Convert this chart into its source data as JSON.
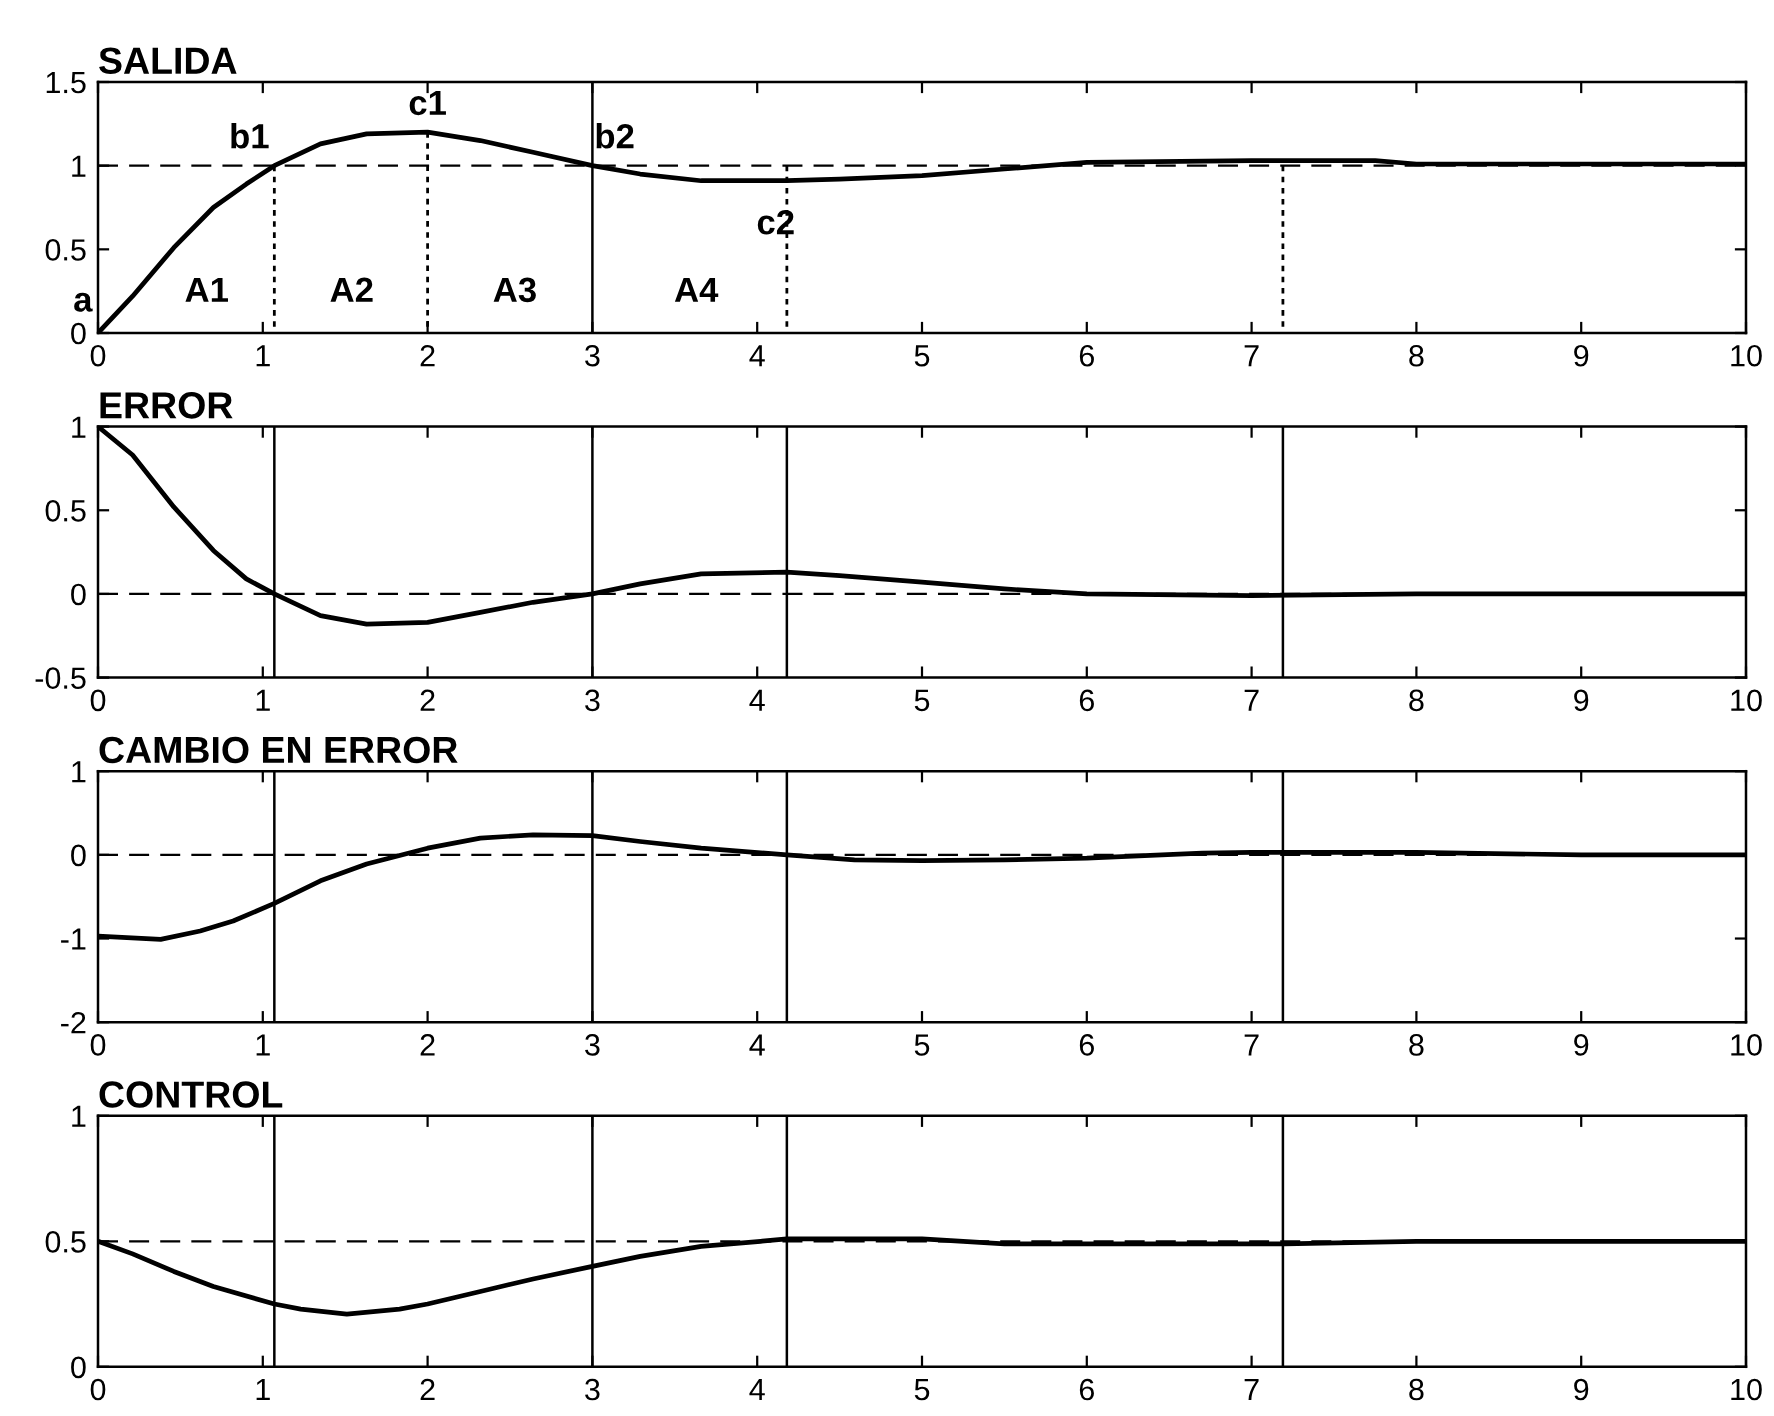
{
  "chart_data": [
    {
      "type": "line",
      "title": "SALIDA",
      "xlim": [
        0,
        10
      ],
      "xticks": [
        0,
        1,
        2,
        3,
        4,
        5,
        6,
        7,
        8,
        9,
        10
      ],
      "ylim": [
        0,
        1.5
      ],
      "yticks": [
        0,
        0.5,
        1,
        1.5
      ],
      "series": [
        {
          "color": "#000000",
          "x": [
            0,
            0.21,
            0.46,
            0.7,
            0.9,
            1.07,
            1.35,
            1.63,
            2.0,
            2.32,
            2.64,
            3.0,
            3.29,
            3.66,
            4.18,
            4.5,
            5.0,
            5.5,
            6.0,
            7.0,
            7.75,
            8.0,
            9.0,
            10.0
          ],
          "values": [
            0,
            0.22,
            0.51,
            0.75,
            0.89,
            1.0,
            1.13,
            1.19,
            1.2,
            1.15,
            1.08,
            1.0,
            0.95,
            0.91,
            0.91,
            0.92,
            0.94,
            0.98,
            1.02,
            1.03,
            1.03,
            1.01,
            1.01,
            1.01
          ]
        },
        {
          "color": "#000000",
          "line_style": "dotted",
          "x": [
            1.07,
            1.07
          ],
          "values": [
            1.0,
            0
          ]
        },
        {
          "color": "#000000",
          "line_style": "dotted",
          "x": [
            2.0,
            2.0
          ],
          "values": [
            1.2,
            0
          ]
        },
        {
          "color": "#000000",
          "line_style": "dotted",
          "x": [
            4.18,
            4.18
          ],
          "values": [
            1.0,
            0
          ]
        },
        {
          "color": "#000000",
          "line_style": "dotted",
          "x": [
            7.19,
            7.19
          ],
          "values": [
            1.0,
            0
          ]
        }
      ],
      "ref_lines": [
        {
          "axis": "y",
          "value": 1,
          "line_style": "dashed",
          "color": "#000000"
        },
        {
          "axis": "x",
          "value": 3,
          "line_style": "solid",
          "color": "#000000"
        }
      ],
      "annotations": [
        {
          "text": "a",
          "x": 0,
          "y": 0
        },
        {
          "text": "b1",
          "x": 1.07,
          "y": 1.0
        },
        {
          "text": "c1",
          "x": 2.0,
          "y": 1.2
        },
        {
          "text": "b2",
          "x": 3.0,
          "y": 1.0
        },
        {
          "text": "c2",
          "x": 4.18,
          "y": 0.91
        },
        "A1",
        "A2",
        "A3",
        "A4"
      ]
    },
    {
      "type": "line",
      "title": "ERROR",
      "xlim": [
        0,
        10
      ],
      "xticks": [
        0,
        1,
        2,
        3,
        4,
        5,
        6,
        7,
        8,
        9,
        10
      ],
      "ylim": [
        -0.5,
        1
      ],
      "yticks": [
        -0.5,
        0,
        0.5,
        1
      ],
      "series": [
        {
          "color": "#000000",
          "x": [
            0,
            0.21,
            0.46,
            0.7,
            0.9,
            1.07,
            1.35,
            1.63,
            2.0,
            2.32,
            2.64,
            3.0,
            3.29,
            3.66,
            4.18,
            4.5,
            5.0,
            5.5,
            6.0,
            7.0,
            8.0,
            9.0,
            10.0
          ],
          "values": [
            1.0,
            0.83,
            0.52,
            0.26,
            0.09,
            0,
            -0.13,
            -0.18,
            -0.17,
            -0.11,
            -0.05,
            0,
            0.06,
            0.12,
            0.13,
            0.11,
            0.07,
            0.03,
            0,
            -0.01,
            0,
            0,
            0
          ]
        }
      ],
      "ref_lines": [
        {
          "axis": "y",
          "value": 0,
          "line_style": "dashed",
          "color": "#000000"
        },
        {
          "axis": "x",
          "value": 1.07,
          "line_style": "solid",
          "color": "#000000"
        },
        {
          "axis": "x",
          "value": 3,
          "line_style": "solid",
          "color": "#000000"
        },
        {
          "axis": "x",
          "value": 4.18,
          "line_style": "solid",
          "color": "#000000"
        },
        {
          "axis": "x",
          "value": 7.19,
          "line_style": "solid",
          "color": "#000000"
        }
      ]
    },
    {
      "type": "line",
      "title": "CAMBIO EN ERROR",
      "xlim": [
        0,
        10
      ],
      "xticks": [
        0,
        1,
        2,
        3,
        4,
        5,
        6,
        7,
        8,
        9,
        10
      ],
      "ylim": [
        -2,
        1
      ],
      "yticks": [
        -2,
        -1,
        0,
        1
      ],
      "series": [
        {
          "color": "#000000",
          "x": [
            0,
            0.38,
            0.62,
            0.82,
            1.07,
            1.35,
            1.63,
            2.0,
            2.32,
            2.64,
            3.0,
            3.29,
            3.66,
            4.18,
            4.59,
            5.0,
            5.5,
            6.0,
            6.7,
            7.0,
            8.0,
            9.0,
            10.0
          ],
          "values": [
            -0.97,
            -1.01,
            -0.91,
            -0.79,
            -0.58,
            -0.31,
            -0.11,
            0.08,
            0.2,
            0.24,
            0.23,
            0.16,
            0.08,
            0,
            -0.06,
            -0.07,
            -0.06,
            -0.04,
            0.02,
            0.03,
            0.03,
            0.0,
            0.0
          ]
        }
      ],
      "ref_lines": [
        {
          "axis": "y",
          "value": 0,
          "line_style": "dashed",
          "color": "#000000"
        },
        {
          "axis": "x",
          "value": 1.07,
          "line_style": "solid",
          "color": "#000000"
        },
        {
          "axis": "x",
          "value": 3,
          "line_style": "solid",
          "color": "#000000"
        },
        {
          "axis": "x",
          "value": 4.18,
          "line_style": "solid",
          "color": "#000000"
        },
        {
          "axis": "x",
          "value": 7.19,
          "line_style": "solid",
          "color": "#000000"
        }
      ]
    },
    {
      "type": "line",
      "title": "CONTROL",
      "xlim": [
        0,
        10
      ],
      "xticks": [
        0,
        1,
        2,
        3,
        4,
        5,
        6,
        7,
        8,
        9,
        10
      ],
      "ylim": [
        0,
        1
      ],
      "yticks": [
        0,
        0.5,
        1
      ],
      "series": [
        {
          "color": "#000000",
          "x": [
            0,
            0.21,
            0.46,
            0.7,
            1.07,
            1.23,
            1.51,
            1.83,
            2.0,
            2.32,
            2.64,
            3.0,
            3.29,
            3.66,
            4.02,
            4.18,
            5.0,
            5.5,
            6.0,
            7.2,
            8.0,
            9.0,
            10.0
          ],
          "values": [
            0.5,
            0.45,
            0.38,
            0.32,
            0.25,
            0.23,
            0.21,
            0.23,
            0.25,
            0.3,
            0.35,
            0.4,
            0.44,
            0.48,
            0.5,
            0.51,
            0.51,
            0.49,
            0.49,
            0.49,
            0.5,
            0.5,
            0.5
          ]
        }
      ],
      "ref_lines": [
        {
          "axis": "y",
          "value": 0.5,
          "line_style": "dashed",
          "color": "#000000"
        },
        {
          "axis": "x",
          "value": 1.07,
          "line_style": "solid",
          "color": "#000000"
        },
        {
          "axis": "x",
          "value": 3,
          "line_style": "solid",
          "color": "#000000"
        },
        {
          "axis": "x",
          "value": 4.18,
          "line_style": "solid",
          "color": "#000000"
        },
        {
          "axis": "x",
          "value": 7.19,
          "line_style": "solid",
          "color": "#000000"
        }
      ]
    }
  ]
}
